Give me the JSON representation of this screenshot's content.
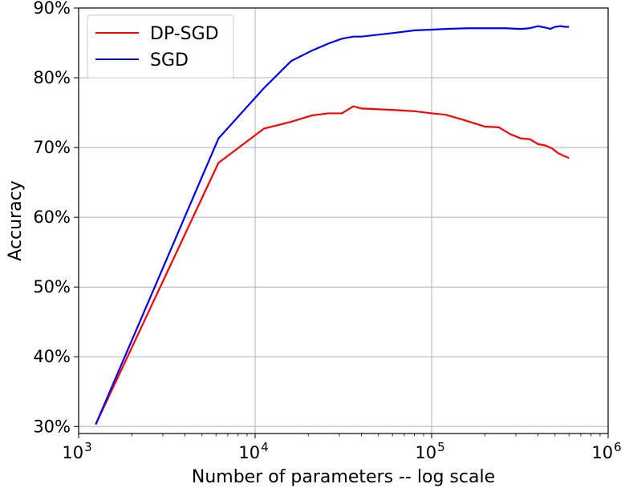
{
  "chart_data": {
    "type": "line",
    "title": "",
    "xlabel": "Number of parameters -- log scale",
    "ylabel": "Accuracy",
    "x_scale": "log",
    "xlim": [
      1000,
      1000000
    ],
    "ylim": [
      29,
      90
    ],
    "grid": true,
    "legend_position": "top-left",
    "x_ticks": [
      {
        "value": 1000,
        "base": "10",
        "exp": "3"
      },
      {
        "value": 10000,
        "base": "10",
        "exp": "4"
      },
      {
        "value": 100000,
        "base": "10",
        "exp": "5"
      },
      {
        "value": 1000000,
        "base": "10",
        "exp": "6"
      }
    ],
    "y_ticks": [
      {
        "value": 30,
        "label": "30%"
      },
      {
        "value": 40,
        "label": "40%"
      },
      {
        "value": 50,
        "label": "50%"
      },
      {
        "value": 60,
        "label": "60%"
      },
      {
        "value": 70,
        "label": "70%"
      },
      {
        "value": 80,
        "label": "80%"
      },
      {
        "value": 90,
        "label": "90%"
      }
    ],
    "series": [
      {
        "name": "DP-SGD",
        "color": "#ff0000",
        "points": [
          [
            1250,
            30.3
          ],
          [
            6200,
            67.8
          ],
          [
            11200,
            72.7
          ],
          [
            16000,
            73.7
          ],
          [
            21000,
            74.6
          ],
          [
            26000,
            74.9
          ],
          [
            31000,
            74.9
          ],
          [
            36000,
            75.9
          ],
          [
            40000,
            75.6
          ],
          [
            60000,
            75.4
          ],
          [
            80000,
            75.2
          ],
          [
            100000,
            74.9
          ],
          [
            120000,
            74.7
          ],
          [
            150000,
            74.0
          ],
          [
            200000,
            73.0
          ],
          [
            240000,
            72.9
          ],
          [
            280000,
            71.9
          ],
          [
            320000,
            71.3
          ],
          [
            360000,
            71.2
          ],
          [
            400000,
            70.5
          ],
          [
            440000,
            70.3
          ],
          [
            480000,
            69.9
          ],
          [
            520000,
            69.2
          ],
          [
            560000,
            68.8
          ],
          [
            600000,
            68.5
          ]
        ]
      },
      {
        "name": "SGD",
        "color": "#0000ff",
        "points": [
          [
            1250,
            30.3
          ],
          [
            6200,
            71.3
          ],
          [
            11200,
            78.5
          ],
          [
            16000,
            82.4
          ],
          [
            21000,
            83.9
          ],
          [
            26000,
            84.9
          ],
          [
            31000,
            85.6
          ],
          [
            36000,
            85.9
          ],
          [
            40000,
            85.9
          ],
          [
            60000,
            86.4
          ],
          [
            80000,
            86.8
          ],
          [
            100000,
            86.9
          ],
          [
            120000,
            87.0
          ],
          [
            160000,
            87.1
          ],
          [
            200000,
            87.1
          ],
          [
            260000,
            87.1
          ],
          [
            320000,
            87.0
          ],
          [
            360000,
            87.1
          ],
          [
            400000,
            87.4
          ],
          [
            440000,
            87.2
          ],
          [
            470000,
            87.0
          ],
          [
            500000,
            87.3
          ],
          [
            540000,
            87.4
          ],
          [
            570000,
            87.3
          ],
          [
            600000,
            87.3
          ]
        ]
      }
    ]
  }
}
